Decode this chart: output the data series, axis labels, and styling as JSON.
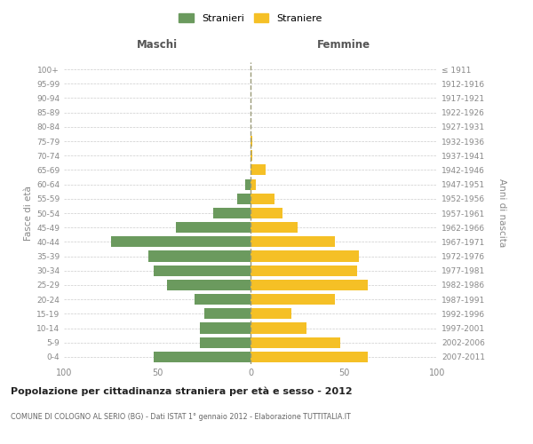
{
  "age_groups": [
    "0-4",
    "5-9",
    "10-14",
    "15-19",
    "20-24",
    "25-29",
    "30-34",
    "35-39",
    "40-44",
    "45-49",
    "50-54",
    "55-59",
    "60-64",
    "65-69",
    "70-74",
    "75-79",
    "80-84",
    "85-89",
    "90-94",
    "95-99",
    "100+"
  ],
  "birth_years": [
    "2007-2011",
    "2002-2006",
    "1997-2001",
    "1992-1996",
    "1987-1991",
    "1982-1986",
    "1977-1981",
    "1972-1976",
    "1967-1971",
    "1962-1966",
    "1957-1961",
    "1952-1956",
    "1947-1951",
    "1942-1946",
    "1937-1941",
    "1932-1936",
    "1927-1931",
    "1922-1926",
    "1917-1921",
    "1912-1916",
    "≤ 1911"
  ],
  "maschi": [
    52,
    27,
    27,
    25,
    30,
    45,
    52,
    55,
    75,
    40,
    20,
    7,
    3,
    0,
    0,
    0,
    0,
    0,
    0,
    0,
    0
  ],
  "femmine": [
    63,
    48,
    30,
    22,
    45,
    63,
    57,
    58,
    45,
    25,
    17,
    13,
    3,
    8,
    1,
    1,
    0,
    0,
    0,
    0,
    0
  ],
  "color_maschi": "#6b9a5e",
  "color_femmine": "#f5c026",
  "title": "Popolazione per cittadinanza straniera per età e sesso - 2012",
  "subtitle": "COMUNE DI COLOGNO AL SERIO (BG) - Dati ISTAT 1° gennaio 2012 - Elaborazione TUTTITALIA.IT",
  "xlabel_left": "Maschi",
  "xlabel_right": "Femmine",
  "ylabel_left": "Fasce di età",
  "ylabel_right": "Anni di nascita",
  "legend_maschi": "Stranieri",
  "legend_femmine": "Straniere",
  "xlim": 100,
  "background_color": "#ffffff",
  "grid_color": "#cccccc"
}
